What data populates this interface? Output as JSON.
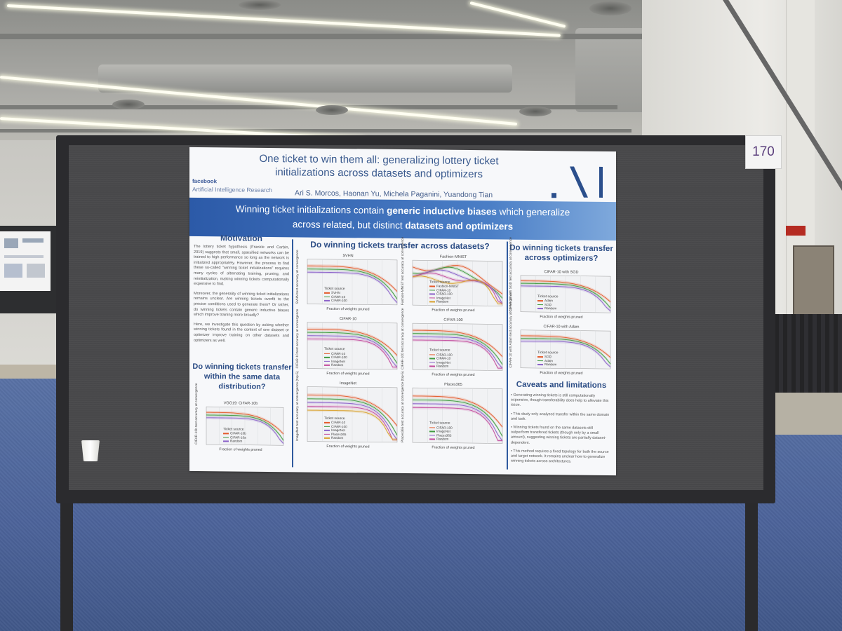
{
  "board": {
    "number": "170"
  },
  "poster": {
    "title_line1": "One ticket to win them all: generalizing lottery ticket",
    "title_line2": "initializations across datasets and optimizers",
    "authors": "Ari S. Morcos, Haonan Yu, Michela Paganini, Yuandong Tian",
    "org_brand": "facebook",
    "org_name": "Artificial Intelligence Research",
    "banner": {
      "l1_pre": "Winning ticket initializations contain ",
      "l1_bold": "generic inductive biases",
      "l1_post": " which generalize",
      "l2_pre": "across related, but distinct ",
      "l2_bold": "datasets and optimizers"
    },
    "motivation": {
      "heading": "Motivation",
      "p1": "The lottery ticket hypothesis (Frankle and Carbin, 2019) suggests that small, sparsified networks can be trained to high performance so long as the network is initialized appropriately. However, the process to find these so-called \"winning ticket initializations\" requires many cycles of alternating training, pruning, and reinitialization, making winning tickets computationally expensive to find.",
      "p2": "Moreover, the generality of winning ticket initializations remains unclear. Are winning tickets overfit to the precise conditions used to generate them? Or rather, do winning tickets contain generic inductive biases which improve training more broadly?",
      "p3": "Here, we investigate this question by asking whether winning tickets found in the context of one dataset or optimizer improve training on other datasets and optimizers as well."
    },
    "same_dist_heading": "Do winning tickets transfer within the same data distribution?",
    "datasets_heading": "Do winning tickets transfer across datasets?",
    "optimizers_heading": "Do winning tickets transfer across optimizers?",
    "caveats": {
      "heading": "Caveats and limitations",
      "items": [
        "Generating winning tickets is still computationally expensive, though transferability does help to alleviate this issue.",
        "This study only analyzed transfer within the same domain and task.",
        "Winning tickets found on the same datasets still outperform transfered tickets (though only by a small amount), suggesting winning tickets are partially dataset-dependent.",
        "This method requires a fixed topology for both the source and target network. It remains unclear how to generalize winning tickets across architectures."
      ]
    },
    "xlabel": "Fraction of weights pruned",
    "legend_title": "Ticket source",
    "plots": {
      "vgg": {
        "title": "VGG19: CIFAR-10b",
        "ylabel": "CIFAR-10b test accuracy at convergence",
        "legend": [
          "CIFAR-10b",
          "CIFAR-10a",
          "Random"
        ]
      },
      "svhn": {
        "title": "SVHN",
        "ylabel": "SVHN test accuracy at convergence",
        "legend": [
          "SVHN",
          "CIFAR-10",
          "CIFAR-100"
        ]
      },
      "fmnist": {
        "title": "Fashion-MNIST",
        "ylabel": "Fashion-MNIST test accuracy at convergence",
        "legend": [
          "Fashion-MNIST",
          "CIFAR-10",
          "CIFAR-100",
          "ImageNet",
          "Random"
        ]
      },
      "cifar10": {
        "title": "CIFAR-10",
        "ylabel": "CIFAR-10 test accuracy at convergence",
        "legend": [
          "CIFAR-10",
          "CIFAR-100",
          "ImageNet",
          "Random"
        ]
      },
      "cifar100": {
        "title": "CIFAR-100",
        "ylabel": "CIFAR-100 test accuracy at convergence",
        "legend": [
          "CIFAR-100",
          "CIFAR-10",
          "ImageNet",
          "Random"
        ]
      },
      "imagenet": {
        "title": "ImageNet",
        "ylabel": "ImageNet test accuracy at convergence (top-5)",
        "legend": [
          "CIFAR-10",
          "CIFAR-100",
          "ImageNet",
          "Places365",
          "Random"
        ]
      },
      "places": {
        "title": "Places365",
        "ylabel": "Places365 test accuracy at convergence (top-5)",
        "legend": [
          "CIFAR-100",
          "ImageNet",
          "Places365",
          "Random"
        ]
      },
      "sgd": {
        "title": "CIFAR-10 with SGD",
        "ylabel": "CIFAR-10 with SGD test accuracy at convergence",
        "legend": [
          "Adam",
          "SGD",
          "Random"
        ]
      },
      "adam": {
        "title": "CIFAR-10 with Adam",
        "ylabel": "CIFAR-10 with Adam test accuracy at convergence",
        "legend": [
          "SGD",
          "Adam",
          "Random"
        ]
      }
    },
    "colors": {
      "primary": "#2d4e86",
      "banner": "#3b6bb5",
      "text": "#555555"
    }
  }
}
